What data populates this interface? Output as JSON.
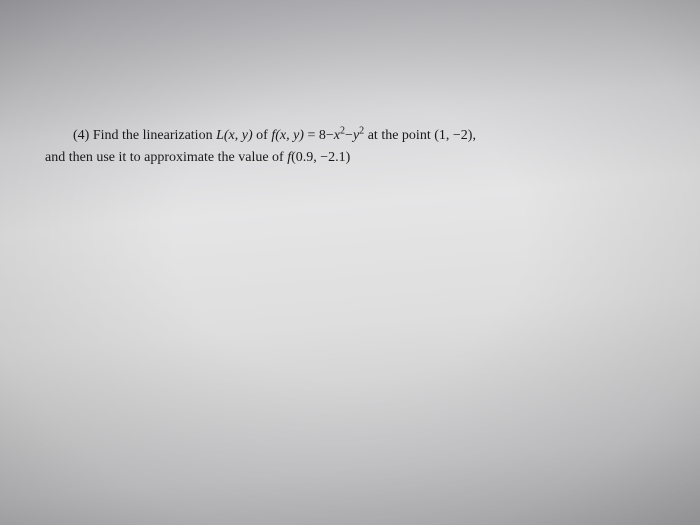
{
  "problem": {
    "number": "(4)",
    "line1_a": "Find the linearization ",
    "L": "L",
    "args1": "(x, y)",
    "line1_b": " of ",
    "f": "f",
    "args2": "(x, y)",
    "eq": " = 8",
    "minus1": "−",
    "x": "x",
    "sq1": "2",
    "minus2": "−",
    "y": "y",
    "sq2": "2",
    "line1_c": " at the point ",
    "point1": "(1, −2)",
    "comma": ",",
    "line2_a": "and then use it to approximate the value of ",
    "f2": "f",
    "args3": "(0.9, −2.1)"
  },
  "colors": {
    "text": "#1a1a1a",
    "bg_light": "#e5e5e6",
    "bg_dark": "#a8a8ad"
  }
}
